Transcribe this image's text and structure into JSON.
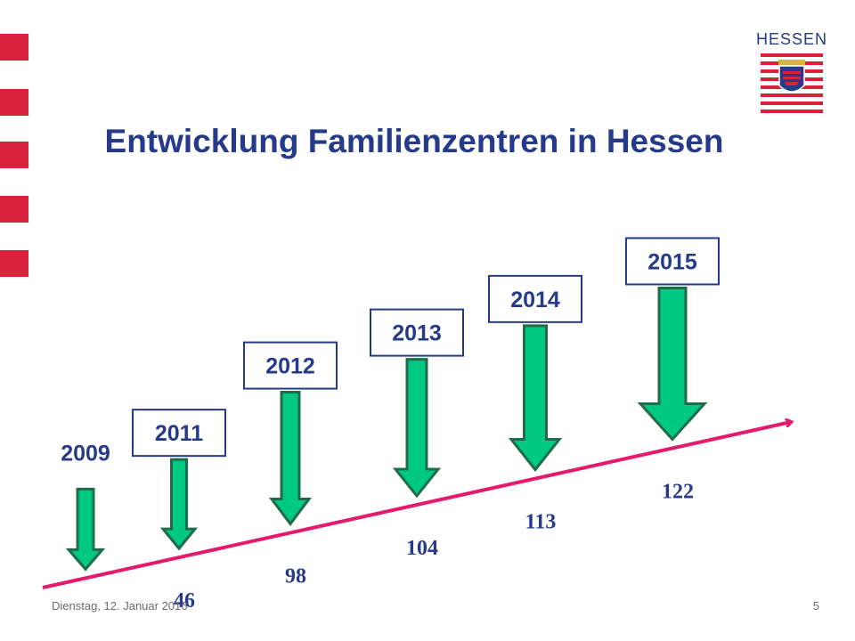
{
  "slide": {
    "title": "Entwicklung Familienzentren in Hessen",
    "date": "Dienstag, 12. Januar 2016",
    "page_number": "5"
  },
  "logo": {
    "text": "HESSEN",
    "colors": {
      "red": "#d8213a",
      "blue": "#253a88"
    }
  },
  "colors": {
    "title": "#253a88",
    "accent_red": "#d8213a",
    "arrow_fill": "#00c983",
    "arrow_stroke": "#1f6b4a",
    "trend_line": "#e51a6d",
    "box_border": "#253a88",
    "label_text": "#253a88"
  },
  "chart_data": {
    "type": "bar",
    "categories": [
      "2009",
      "2011",
      "2012",
      "2013",
      "2014",
      "2015"
    ],
    "values": [
      null,
      46,
      98,
      104,
      113,
      122
    ],
    "value_labels": [
      "",
      "46",
      "98",
      "104",
      "113",
      "122"
    ],
    "title": "Entwicklung Familienzentren in Hessen",
    "xlabel": "",
    "ylabel": "",
    "grid": false,
    "legend": "none"
  }
}
